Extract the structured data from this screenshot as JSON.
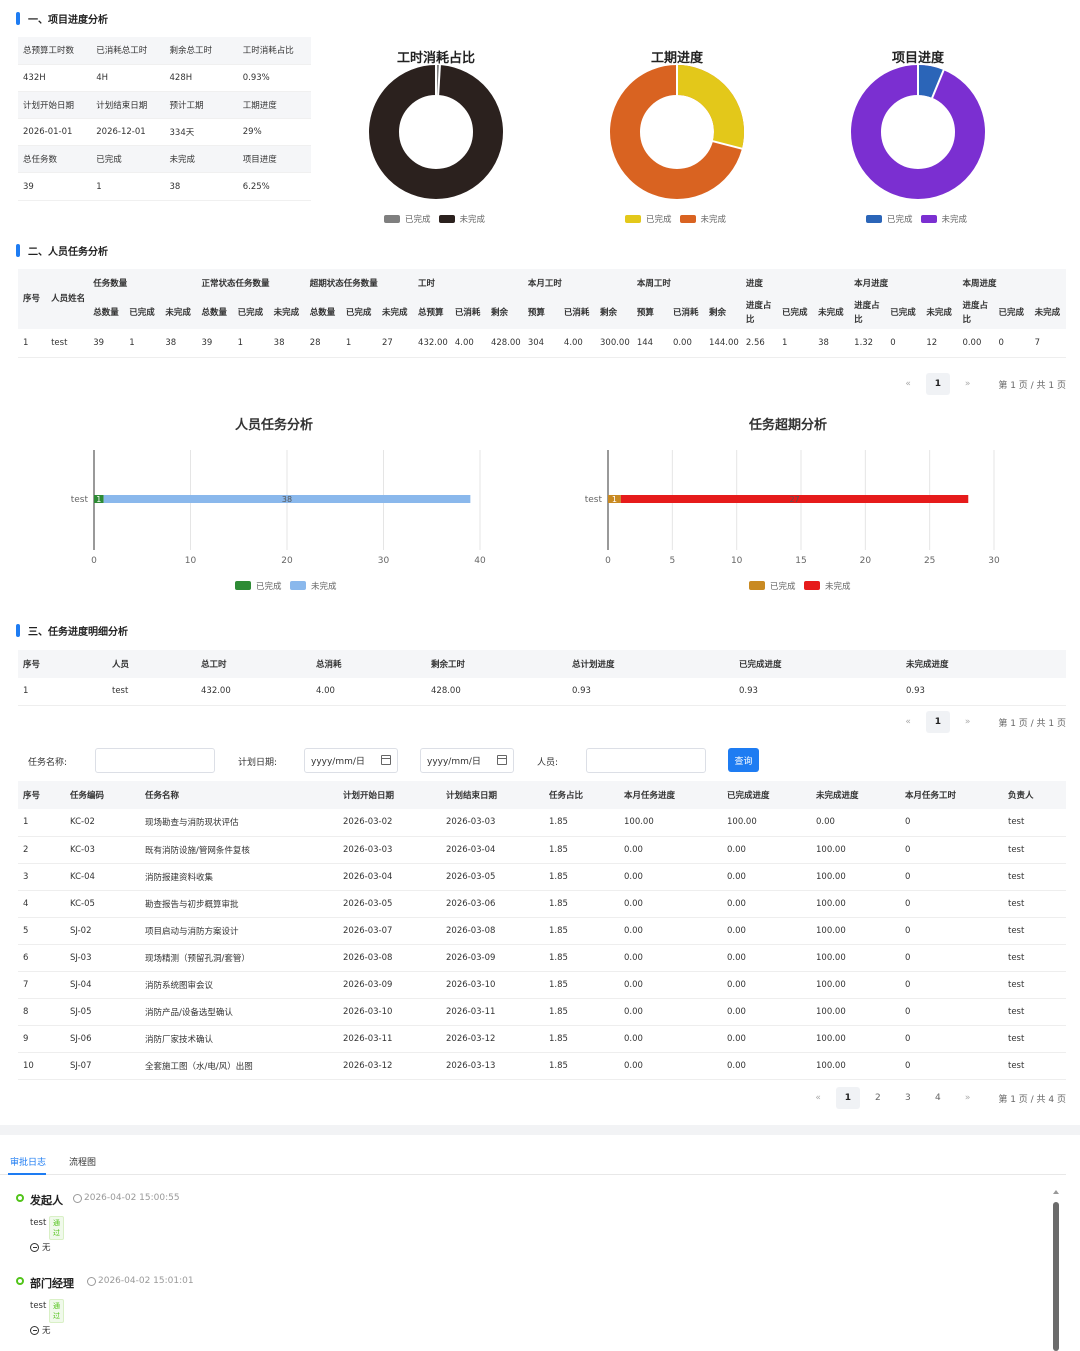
{
  "sections": {
    "s1": "一、项目进度分析",
    "s2": "二、人员任务分析",
    "s3": "三、任务进度明细分析"
  },
  "summary": {
    "rows": [
      [
        "总预算工时数",
        "已消耗总工时",
        "剩余总工时",
        "工时消耗占比"
      ],
      [
        "432H",
        "4H",
        "428H",
        "0.93%"
      ],
      [
        "计划开始日期",
        "计划结束日期",
        "预计工期",
        "工期进度"
      ],
      [
        "2026-01-01",
        "2026-12-01",
        "334天",
        "29%"
      ],
      [
        "总任务数",
        "已完成",
        "未完成",
        "项目进度"
      ],
      [
        "39",
        "1",
        "38",
        "6.25%"
      ]
    ]
  },
  "donuts": [
    {
      "title": "工时消耗占比",
      "done_fraction": 0.0093,
      "done_color": "#7f7f7f",
      "todo_color": "#2b211e",
      "legend_done": "已完成",
      "legend_todo": "未完成"
    },
    {
      "title": "工期进度",
      "done_fraction": 0.29,
      "done_color": "#e3c81a",
      "todo_color": "#d96321",
      "legend_done": "已完成",
      "legend_todo": "未完成"
    },
    {
      "title": "项目进度",
      "done_fraction": 0.0625,
      "done_color": "#2b65b8",
      "todo_color": "#7b2fd1",
      "legend_done": "已完成",
      "legend_todo": "未完成"
    }
  ],
  "personnel_table": {
    "group_headers": [
      "序号",
      "人员姓名",
      "任务数量",
      "正常状态任务数量",
      "超期状态任务数量",
      "工时",
      "本月工时",
      "本周工时",
      "进度",
      "本月进度",
      "本周进度"
    ],
    "sub_headers": [
      "总数量",
      "已完成",
      "未完成",
      "总数量",
      "已完成",
      "未完成",
      "总数量",
      "已完成",
      "未完成",
      "总预算",
      "已消耗",
      "剩余",
      "预算",
      "已消耗",
      "剩余",
      "预算",
      "已消耗",
      "剩余",
      "进度占比",
      "已完成",
      "未完成",
      "进度占比",
      "已完成",
      "未完成",
      "进度占比",
      "已完成",
      "未完成"
    ],
    "rows": [
      [
        "1",
        "test",
        "39",
        "1",
        "38",
        "39",
        "1",
        "38",
        "28",
        "1",
        "27",
        "432.00",
        "4.00",
        "428.00",
        "304",
        "4.00",
        "300.00",
        "144",
        "0.00",
        "144.00",
        "2.56",
        "1",
        "38",
        "1.32",
        "0",
        "12",
        "0.00",
        "0",
        "7"
      ]
    ]
  },
  "pager1": {
    "prev": "«",
    "page": "1",
    "next": "»",
    "info": "第 1 页 / 共 1 页"
  },
  "pager2": {
    "prev": "«",
    "page": "1",
    "next": "»",
    "info": "第 1 页 / 共 1 页"
  },
  "pager3": {
    "prev": "«",
    "pages": [
      "1",
      "2",
      "3",
      "4"
    ],
    "next": "»",
    "info": "第 1 页 / 共 4 页"
  },
  "chart_data": [
    {
      "type": "bar",
      "orientation": "horizontal",
      "stacked": true,
      "title": "人员任务分析",
      "categories": [
        "test"
      ],
      "series": [
        {
          "name": "已完成",
          "values": [
            1
          ],
          "color": "#2e8b35"
        },
        {
          "name": "未完成",
          "values": [
            38
          ],
          "color": "#8ab8ec"
        }
      ],
      "xlim": [
        0,
        40
      ],
      "xticks": [
        "0",
        "10",
        "20",
        "30",
        "40"
      ],
      "grid": true,
      "legend": "bottom"
    },
    {
      "type": "bar",
      "orientation": "horizontal",
      "stacked": true,
      "title": "任务超期分析",
      "categories": [
        "test"
      ],
      "series": [
        {
          "name": "已完成",
          "values": [
            1
          ],
          "color": "#c98a22"
        },
        {
          "name": "未完成",
          "values": [
            27
          ],
          "color": "#e61b1b"
        }
      ],
      "xlim": [
        0,
        30
      ],
      "xticks": [
        "0",
        "5",
        "10",
        "15",
        "20",
        "25",
        "30"
      ],
      "grid": true,
      "legend": "bottom"
    }
  ],
  "detail_summary": {
    "headers": [
      "序号",
      "人员",
      "总工时",
      "总消耗",
      "剩余工时",
      "总计划进度",
      "已完成进度",
      "未完成进度"
    ],
    "rows": [
      [
        "1",
        "test",
        "432.00",
        "4.00",
        "428.00",
        "0.93",
        "0.93",
        "0.93"
      ]
    ]
  },
  "filter": {
    "task_name_label": "任务名称:",
    "task_name_value": "",
    "plan_date_label": "计划日期:",
    "date_from": "yyyy/mm/日",
    "date_to": "yyyy/mm/日",
    "person_label": "人员:",
    "person_value": "",
    "query_button": "查询"
  },
  "task_table": {
    "headers": [
      "序号",
      "任务编码",
      "任务名称",
      "计划开始日期",
      "计划结束日期",
      "任务占比",
      "本月任务进度",
      "已完成进度",
      "未完成进度",
      "本月任务工时",
      "负责人"
    ],
    "rows": [
      [
        "1",
        "KC-02",
        "现场勘查与消防现状评估",
        "2026-03-02",
        "2026-03-03",
        "1.85",
        "100.00",
        "100.00",
        "0.00",
        "0",
        "test"
      ],
      [
        "2",
        "KC-03",
        "既有消防设施/管网条件复核",
        "2026-03-03",
        "2026-03-04",
        "1.85",
        "0.00",
        "0.00",
        "100.00",
        "0",
        "test"
      ],
      [
        "3",
        "KC-04",
        "消防报建资料收集",
        "2026-03-04",
        "2026-03-05",
        "1.85",
        "0.00",
        "0.00",
        "100.00",
        "0",
        "test"
      ],
      [
        "4",
        "KC-05",
        "勘查报告与初步概算审批",
        "2026-03-05",
        "2026-03-06",
        "1.85",
        "0.00",
        "0.00",
        "100.00",
        "0",
        "test"
      ],
      [
        "5",
        "SJ-02",
        "项目启动与消防方案设计",
        "2026-03-07",
        "2026-03-08",
        "1.85",
        "0.00",
        "0.00",
        "100.00",
        "0",
        "test"
      ],
      [
        "6",
        "SJ-03",
        "现场精测（预留孔洞/套管）",
        "2026-03-08",
        "2026-03-09",
        "1.85",
        "0.00",
        "0.00",
        "100.00",
        "0",
        "test"
      ],
      [
        "7",
        "SJ-04",
        "消防系统图审会议",
        "2026-03-09",
        "2026-03-10",
        "1.85",
        "0.00",
        "0.00",
        "100.00",
        "0",
        "test"
      ],
      [
        "8",
        "SJ-05",
        "消防产品/设备选型确认",
        "2026-03-10",
        "2026-03-11",
        "1.85",
        "0.00",
        "0.00",
        "100.00",
        "0",
        "test"
      ],
      [
        "9",
        "SJ-06",
        "消防厂家技术确认",
        "2026-03-11",
        "2026-03-12",
        "1.85",
        "0.00",
        "0.00",
        "100.00",
        "0",
        "test"
      ],
      [
        "10",
        "SJ-07",
        "全套施工图（水/电/风）出图",
        "2026-03-12",
        "2026-03-13",
        "1.85",
        "0.00",
        "0.00",
        "100.00",
        "0",
        "test"
      ]
    ]
  },
  "tabs": {
    "log": "审批日志",
    "flow": "流程图"
  },
  "approval_log": [
    {
      "role": "发起人",
      "time": "2026-04-02 15:00:55",
      "user": "test",
      "status": "通过",
      "comment": "无"
    },
    {
      "role": "部门经理",
      "time": "2026-04-02 15:01:01",
      "user": "test",
      "status": "通过",
      "comment": "无"
    }
  ]
}
